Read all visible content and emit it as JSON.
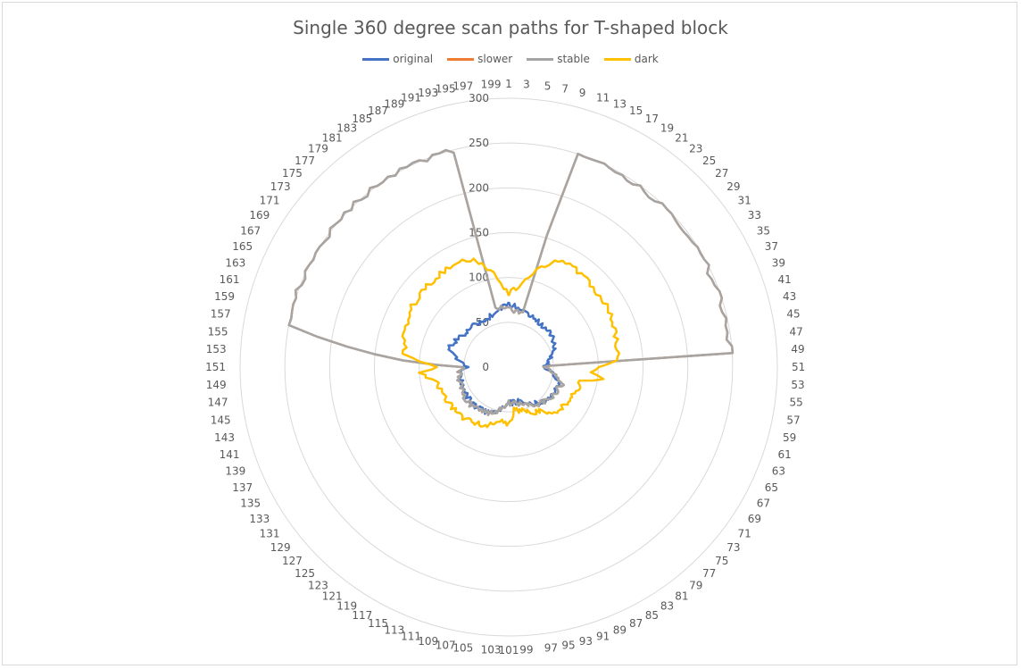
{
  "chart_data": {
    "type": "radar",
    "title": "Single 360 degree scan paths for T-shaped block",
    "radial_ticks": [
      "0",
      "50",
      "100",
      "150",
      "200",
      "250",
      "300"
    ],
    "r_range": [
      0,
      300
    ],
    "category_count": 200,
    "category_labels_shown": "odd numbers 1-199",
    "legend_position": "top",
    "gridlines": true,
    "series": [
      {
        "name": "original",
        "color": "#4472c4",
        "knots": [
          [
            0,
            70
          ],
          [
            8,
            65
          ],
          [
            20,
            60
          ],
          [
            34,
            58
          ],
          [
            46,
            45
          ],
          [
            50,
            40
          ],
          [
            60,
            60
          ],
          [
            70,
            58
          ],
          [
            80,
            50
          ],
          [
            90,
            40
          ],
          [
            100,
            40
          ],
          [
            112,
            55
          ],
          [
            124,
            58
          ],
          [
            136,
            56
          ],
          [
            148,
            52
          ],
          [
            150,
            45
          ],
          [
            160,
            70
          ],
          [
            170,
            62
          ],
          [
            180,
            60
          ],
          [
            192,
            60
          ],
          [
            199,
            70
          ]
        ]
      },
      {
        "name": "slower",
        "color": "#ed7d31",
        "knots": [
          [
            0,
            65
          ],
          [
            8,
            62
          ],
          [
            10,
            248
          ],
          [
            20,
            248
          ],
          [
            30,
            248
          ],
          [
            40,
            248
          ],
          [
            48,
            248
          ],
          [
            49,
            45
          ],
          [
            50,
            40
          ],
          [
            60,
            62
          ],
          [
            70,
            58
          ],
          [
            80,
            52
          ],
          [
            90,
            42
          ],
          [
            100,
            40
          ],
          [
            112,
            55
          ],
          [
            124,
            60
          ],
          [
            136,
            58
          ],
          [
            148,
            55
          ],
          [
            150,
            50
          ],
          [
            156,
            250
          ],
          [
            166,
            250
          ],
          [
            176,
            250
          ],
          [
            186,
            250
          ],
          [
            192,
            250
          ],
          [
            193,
            68
          ],
          [
            199,
            65
          ]
        ]
      },
      {
        "name": "stable",
        "color": "#a5a5a5",
        "knots": [
          [
            0,
            65
          ],
          [
            8,
            62
          ],
          [
            10,
            248
          ],
          [
            20,
            248
          ],
          [
            30,
            248
          ],
          [
            40,
            248
          ],
          [
            48,
            248
          ],
          [
            49,
            45
          ],
          [
            50,
            40
          ],
          [
            60,
            62
          ],
          [
            70,
            58
          ],
          [
            80,
            52
          ],
          [
            90,
            42
          ],
          [
            100,
            40
          ],
          [
            112,
            55
          ],
          [
            124,
            60
          ],
          [
            136,
            58
          ],
          [
            148,
            55
          ],
          [
            150,
            50
          ],
          [
            156,
            250
          ],
          [
            166,
            250
          ],
          [
            176,
            250
          ],
          [
            186,
            250
          ],
          [
            192,
            250
          ],
          [
            193,
            68
          ],
          [
            199,
            65
          ]
        ]
      },
      {
        "name": "dark",
        "color": "#ffc000",
        "knots": [
          [
            0,
            82
          ],
          [
            4,
            90
          ],
          [
            8,
            108
          ],
          [
            12,
            125
          ],
          [
            16,
            132
          ],
          [
            20,
            132
          ],
          [
            24,
            130
          ],
          [
            28,
            128
          ],
          [
            32,
            128
          ],
          [
            36,
            128
          ],
          [
            40,
            126
          ],
          [
            44,
            122
          ],
          [
            48,
            122
          ],
          [
            50,
            100
          ],
          [
            52,
            90
          ],
          [
            54,
            108
          ],
          [
            56,
            82
          ],
          [
            60,
            80
          ],
          [
            64,
            78
          ],
          [
            68,
            76
          ],
          [
            72,
            74
          ],
          [
            76,
            72
          ],
          [
            80,
            60
          ],
          [
            84,
            58
          ],
          [
            88,
            52
          ],
          [
            92,
            50
          ],
          [
            96,
            48
          ],
          [
            100,
            64
          ],
          [
            104,
            60
          ],
          [
            108,
            64
          ],
          [
            112,
            72
          ],
          [
            116,
            72
          ],
          [
            120,
            74
          ],
          [
            124,
            76
          ],
          [
            128,
            76
          ],
          [
            132,
            78
          ],
          [
            136,
            78
          ],
          [
            140,
            80
          ],
          [
            144,
            82
          ],
          [
            148,
            100
          ],
          [
            150,
            78
          ],
          [
            152,
            100
          ],
          [
            154,
            118
          ],
          [
            158,
            120
          ],
          [
            162,
            124
          ],
          [
            166,
            126
          ],
          [
            170,
            128
          ],
          [
            174,
            128
          ],
          [
            178,
            128
          ],
          [
            182,
            130
          ],
          [
            186,
            132
          ],
          [
            190,
            126
          ],
          [
            194,
            110
          ],
          [
            196,
            100
          ],
          [
            199,
            85
          ]
        ]
      }
    ]
  }
}
